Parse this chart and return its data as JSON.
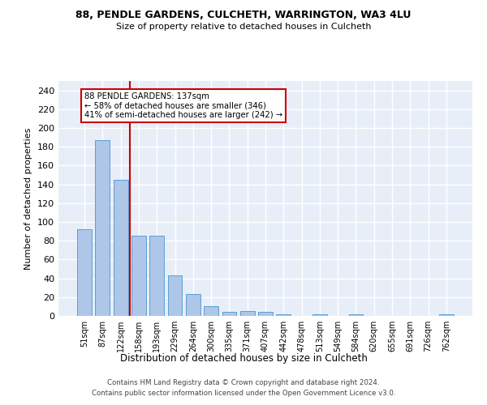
{
  "title_line1": "88, PENDLE GARDENS, CULCHETH, WARRINGTON, WA3 4LU",
  "title_line2": "Size of property relative to detached houses in Culcheth",
  "xlabel": "Distribution of detached houses by size in Culcheth",
  "ylabel": "Number of detached properties",
  "bar_color": "#aec6e8",
  "bar_edge_color": "#5a9fd4",
  "categories": [
    "51sqm",
    "87sqm",
    "122sqm",
    "158sqm",
    "193sqm",
    "229sqm",
    "264sqm",
    "300sqm",
    "335sqm",
    "371sqm",
    "407sqm",
    "442sqm",
    "478sqm",
    "513sqm",
    "549sqm",
    "584sqm",
    "620sqm",
    "655sqm",
    "691sqm",
    "726sqm",
    "762sqm"
  ],
  "values": [
    92,
    187,
    145,
    85,
    85,
    43,
    23,
    10,
    4,
    5,
    4,
    2,
    0,
    2,
    0,
    2,
    0,
    0,
    0,
    0,
    2
  ],
  "ylim": [
    0,
    250
  ],
  "yticks": [
    0,
    20,
    40,
    60,
    80,
    100,
    120,
    140,
    160,
    180,
    200,
    220,
    240
  ],
  "vline_x": 2.5,
  "annotation_text": "88 PENDLE GARDENS: 137sqm\n← 58% of detached houses are smaller (346)\n41% of semi-detached houses are larger (242) →",
  "annotation_box_color": "#ffffff",
  "annotation_box_edgecolor": "#cc0000",
  "vline_color": "#cc0000",
  "background_color": "#e8eef8",
  "grid_color": "#ffffff",
  "footer_line1": "Contains HM Land Registry data © Crown copyright and database right 2024.",
  "footer_line2": "Contains public sector information licensed under the Open Government Licence v3.0."
}
